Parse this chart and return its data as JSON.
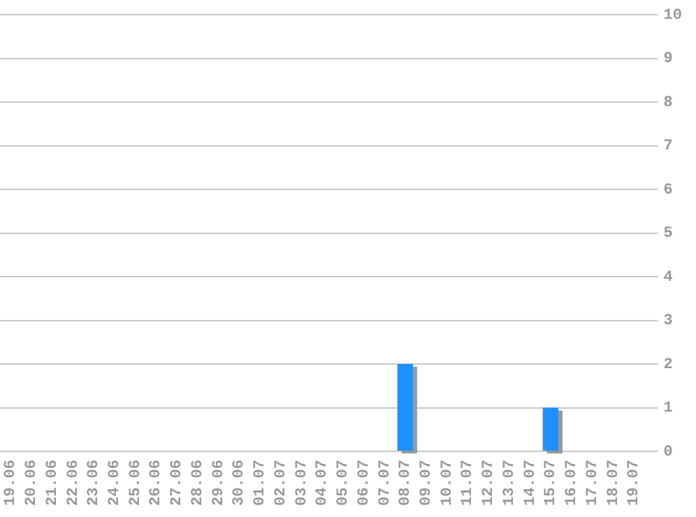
{
  "chart_data": {
    "type": "bar",
    "categories": [
      "19.06",
      "20.06",
      "21.06",
      "22.06",
      "23.06",
      "24.06",
      "25.06",
      "26.06",
      "27.06",
      "28.06",
      "29.06",
      "30.06",
      "01.07",
      "02.07",
      "03.07",
      "04.07",
      "05.07",
      "06.07",
      "07.07",
      "08.07",
      "09.07",
      "10.07",
      "11.07",
      "12.07",
      "13.07",
      "14.07",
      "15.07",
      "16.07",
      "17.07",
      "18.07",
      "19.07"
    ],
    "values": [
      0,
      0,
      0,
      0,
      0,
      0,
      0,
      0,
      0,
      0,
      0,
      0,
      0,
      0,
      0,
      0,
      0,
      0,
      0,
      2,
      0,
      0,
      0,
      0,
      0,
      0,
      1,
      0,
      0,
      0,
      0
    ],
    "color": "#1e90ff",
    "ylim": [
      0,
      10
    ],
    "yticks": [
      0,
      1,
      2,
      3,
      4,
      5,
      6,
      7,
      8,
      9,
      10
    ],
    "grid": "y",
    "legend": false
  }
}
